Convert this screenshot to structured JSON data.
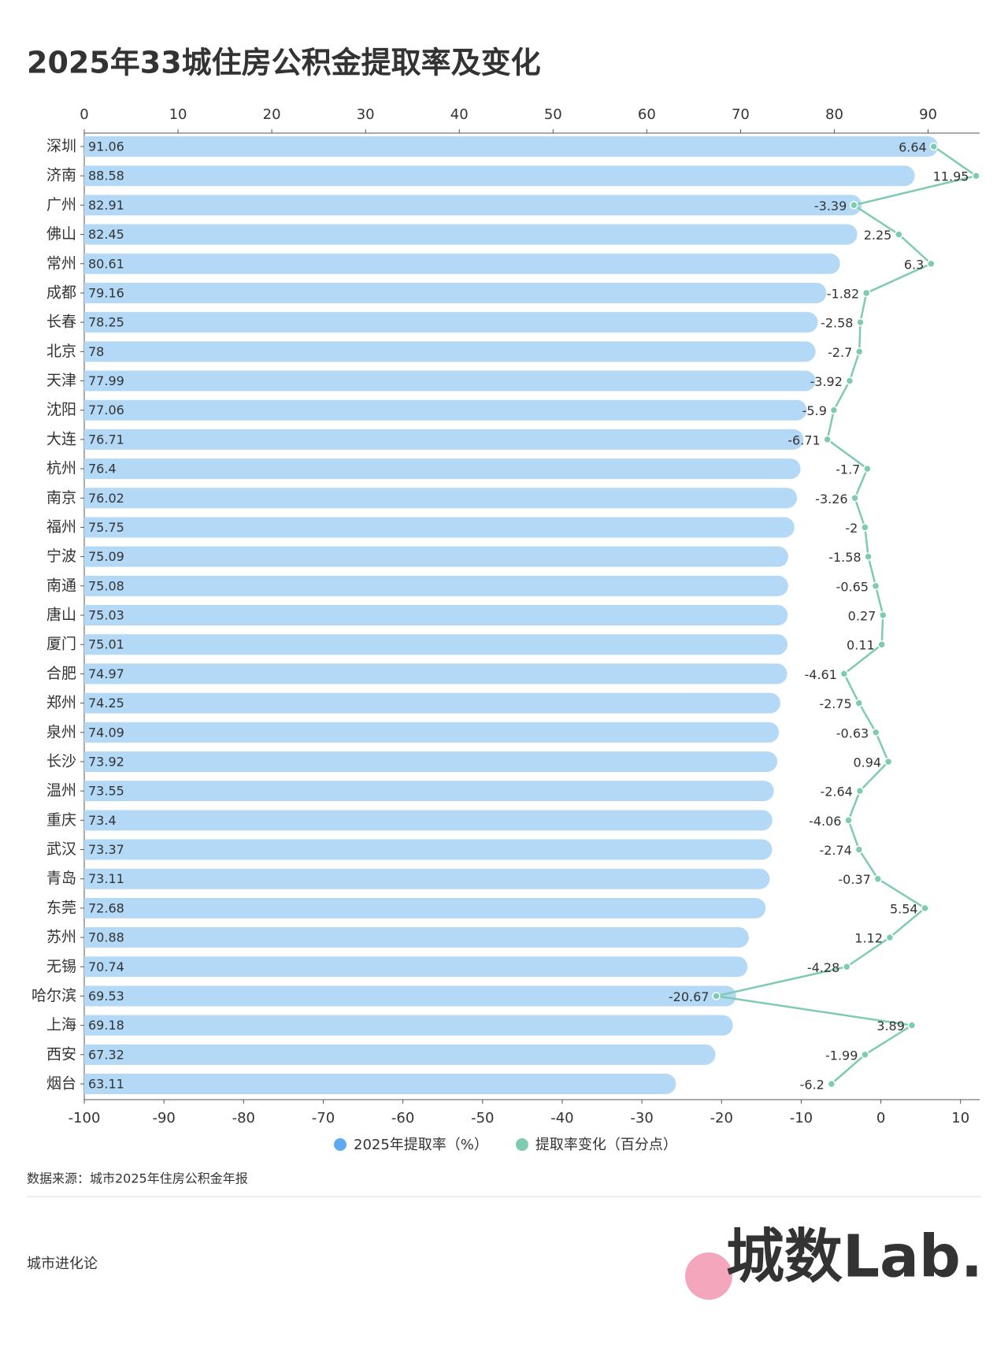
{
  "chart_data": {
    "type": "bar",
    "title": "2025年33城住房公积金提取率及变化",
    "categories": [
      "深圳",
      "济南",
      "广州",
      "佛山",
      "常州",
      "成都",
      "长春",
      "北京",
      "天津",
      "沈阳",
      "大连",
      "杭州",
      "南京",
      "福州",
      "宁波",
      "南通",
      "唐山",
      "厦门",
      "合肥",
      "郑州",
      "泉州",
      "长沙",
      "温州",
      "重庆",
      "武汉",
      "青岛",
      "东莞",
      "苏州",
      "无锡",
      "哈尔滨",
      "上海",
      "西安",
      "烟台"
    ],
    "series": [
      {
        "name": "2025年提取率（%）",
        "type": "bar",
        "color": "#b4d9f6",
        "legend_color": "#5daaf0",
        "values": [
          91.06,
          88.58,
          82.91,
          82.45,
          80.61,
          79.16,
          78.25,
          78,
          77.99,
          77.06,
          76.71,
          76.4,
          76.02,
          75.75,
          75.09,
          75.08,
          75.03,
          75.01,
          74.97,
          74.25,
          74.09,
          73.92,
          73.55,
          73.4,
          73.37,
          73.11,
          72.68,
          70.88,
          70.74,
          69.53,
          69.18,
          67.32,
          63.11
        ]
      },
      {
        "name": "提取率变化（百分点）",
        "type": "line",
        "axis": "x2",
        "color": "#7ecbb0",
        "values": [
          6.64,
          11.95,
          -3.39,
          2.25,
          6.3,
          -1.82,
          -2.58,
          -2.7,
          -3.92,
          -5.9,
          -6.71,
          -1.7,
          -3.26,
          -2,
          -1.58,
          -0.65,
          0.27,
          0.11,
          -4.61,
          -2.75,
          -0.63,
          0.94,
          -2.64,
          -4.06,
          -2.74,
          -0.37,
          5.54,
          1.12,
          -4.28,
          -20.67,
          3.89,
          -1.99,
          -6.2
        ]
      }
    ],
    "xlim": [
      0,
      95.5
    ],
    "xticks": [
      0,
      10,
      20,
      30,
      40,
      50,
      60,
      70,
      80,
      90
    ],
    "x2lim": [
      -100,
      12.4
    ],
    "x2ticks": [
      -100,
      -90,
      -80,
      -70,
      -60,
      -50,
      -40,
      -30,
      -20,
      -10,
      0,
      10
    ],
    "source": "数据来源：城市2025年住房公积金年报"
  },
  "footer": {
    "brand": "城市进化论",
    "logo": "城数Lab."
  }
}
